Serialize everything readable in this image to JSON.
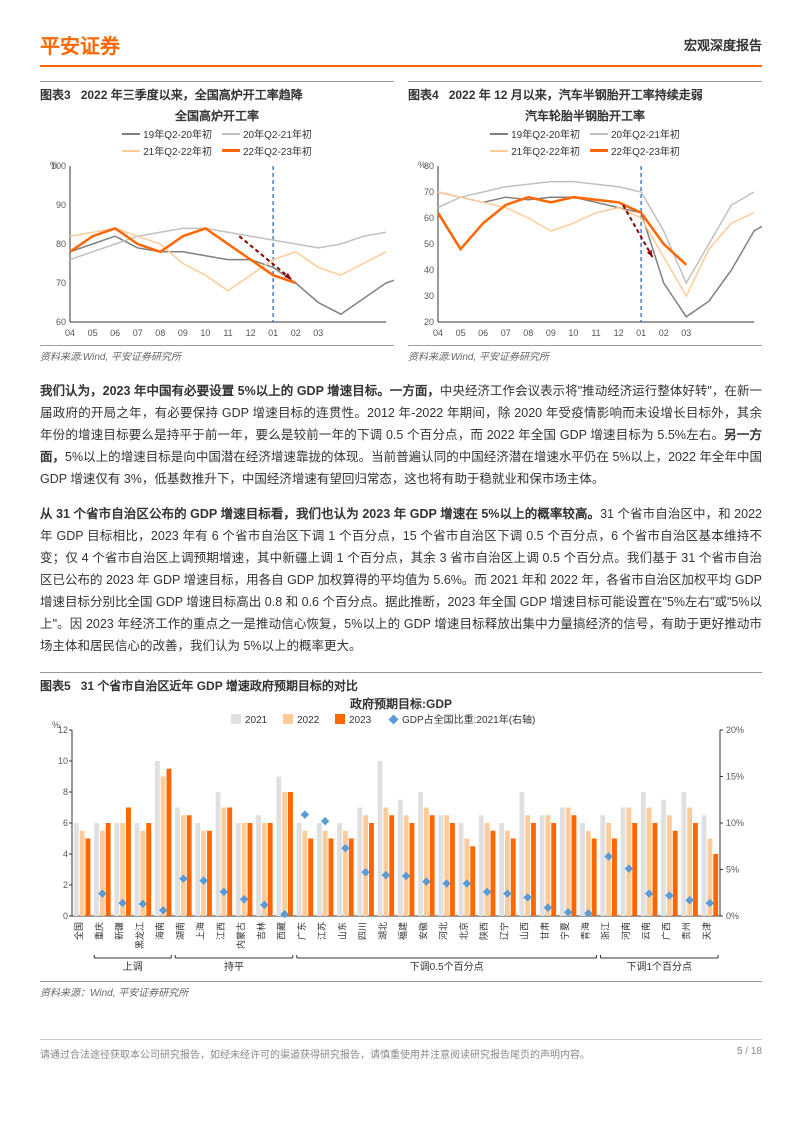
{
  "header": {
    "logo": "平安证券",
    "right": "宏观深度报告"
  },
  "chart3": {
    "type": "line",
    "number": "图表3",
    "title": "2022 年三季度以来，全国高炉开工率趋降",
    "subtitle": "全国高炉开工率",
    "ylabel": "%",
    "ylim": [
      60,
      100
    ],
    "yticks": [
      60,
      70,
      80,
      90,
      100
    ],
    "xticks": [
      "04",
      "05",
      "06",
      "07",
      "08",
      "09",
      "10",
      "11",
      "12",
      "01",
      "02",
      "03"
    ],
    "vline_at": 9,
    "arrow": {
      "from": [
        7.5,
        82
      ],
      "to": [
        9.8,
        71
      ]
    },
    "series": [
      {
        "label": "19年Q2-20年初",
        "color": "#808080",
        "data": [
          78,
          80,
          82,
          79,
          78,
          78,
          77,
          76,
          76,
          74,
          70,
          65,
          62,
          66,
          70,
          72,
          74
        ]
      },
      {
        "label": "20年Q2-21年初",
        "color": "#c0c0c0",
        "data": [
          76,
          78,
          80,
          82,
          83,
          84,
          84,
          83,
          82,
          81,
          80,
          79,
          80,
          82,
          83
        ]
      },
      {
        "label": "21年Q2-22年初",
        "color": "#ffcc99",
        "data": [
          82,
          83,
          84,
          82,
          80,
          75,
          72,
          68,
          72,
          76,
          78,
          74,
          72,
          75,
          78
        ]
      },
      {
        "label": "22年Q2-23年初",
        "color": "#ff6600",
        "data": [
          78,
          82,
          84,
          80,
          78,
          82,
          84,
          80,
          76,
          72,
          70
        ]
      }
    ],
    "source": "资料来源:Wind, 平安证券研究所"
  },
  "chart4": {
    "type": "line",
    "number": "图表4",
    "title": "2022 年 12 月以来，汽车半钢胎开工率持续走弱",
    "subtitle": "汽车轮胎半钢胎开工率",
    "ylabel": "%",
    "ylim": [
      20,
      80
    ],
    "yticks": [
      20,
      30,
      40,
      50,
      60,
      70,
      80
    ],
    "xticks": [
      "04",
      "05",
      "06",
      "07",
      "08",
      "09",
      "10",
      "11",
      "12",
      "01",
      "02",
      "03"
    ],
    "vline_at": 9,
    "arrow": {
      "from": [
        8.2,
        65
      ],
      "to": [
        9.5,
        45
      ]
    },
    "series": [
      {
        "label": "19年Q2-20年初",
        "color": "#808080",
        "data": [
          70,
          68,
          66,
          68,
          67,
          68,
          68,
          66,
          64,
          62,
          35,
          22,
          28,
          40,
          55,
          60
        ]
      },
      {
        "label": "20年Q2-21年初",
        "color": "#c0c0c0",
        "data": [
          64,
          68,
          70,
          72,
          73,
          74,
          74,
          73,
          72,
          70,
          55,
          35,
          50,
          65,
          70
        ]
      },
      {
        "label": "21年Q2-22年初",
        "color": "#ffcc99",
        "data": [
          70,
          68,
          66,
          64,
          60,
          55,
          58,
          62,
          64,
          60,
          45,
          30,
          48,
          58,
          62
        ]
      },
      {
        "label": "22年Q2-23年初",
        "color": "#ff6600",
        "data": [
          62,
          48,
          58,
          65,
          68,
          66,
          68,
          67,
          66,
          62,
          50,
          42
        ]
      }
    ],
    "source": "资料来源:Wind, 平安证券研究所"
  },
  "body": {
    "p1_bold": "我们认为，2023 年中国有必要设置 5%以上的 GDP 增速目标。一方面，",
    "p1_rest": "中央经济工作会议表示将\"推动经济运行整体好转\"，在新一届政府的开局之年，有必要保持 GDP 增速目标的连贯性。2012 年-2022 年期间，除 2020 年受疫情影响而未设增长目标外，其余年份的增速目标要么是持平于前一年，要么是较前一年的下调 0.5 个百分点，而 2022 年全国 GDP 增速目标为 5.5%左右。",
    "p1_bold2": "另一方面，",
    "p1_rest2": "5%以上的增速目标是向中国潜在经济增速靠拢的体现。当前普遍认同的中国经济潜在增速水平仍在 5%以上，2022 年全年中国 GDP 增速仅有 3%，低基数推升下，中国经济增速有望回归常态，这也将有助于稳就业和保市场主体。",
    "p2_bold": "从 31 个省市自治区公布的 GDP 增速目标看，我们也认为 2023 年 GDP 增速在 5%以上的概率较高。",
    "p2_rest": "31 个省市自治区中，和 2022 年 GDP 目标相比，2023 年有 6 个省市自治区下调 1 个百分点，15 个省市自治区下调 0.5 个百分点，6 个省市自治区基本维持不变；仅 4 个省市自治区上调预期增速，其中新疆上调 1 个百分点，其余 3 省市自治区上调 0.5 个百分点。我们基于 31 个省市自治区已公布的 2023 年 GDP 增速目标，用各自 GDP 加权算得的平均值为 5.6%。而 2021 年和 2022 年，各省市自治区加权平均 GDP 增速目标分别比全国 GDP 增速目标高出 0.8 和 0.6 个百分点。据此推断，2023 年全国 GDP 增速目标可能设置在\"5%左右\"或\"5%以上\"。因 2023 年经济工作的重点之一是推动信心恢复，5%以上的 GDP 增速目标释放出集中力量搞经济的信号，有助于更好推动市场主体和居民信心的改善，我们认为 5%以上的概率更大。"
  },
  "chart5": {
    "type": "bar",
    "number": "图表5",
    "title": "31 个省市自治区近年 GDP 增速政府预期目标的对比",
    "subtitle": "政府预期目标:GDP",
    "ylabel_left": "%",
    "ylabel_right": "",
    "ylim_left": [
      0,
      12
    ],
    "yticks_left": [
      0,
      2,
      4,
      6,
      8,
      10,
      12
    ],
    "ylim_right": [
      0,
      20
    ],
    "yticks_right": [
      "0%",
      "5%",
      "10%",
      "15%",
      "20%"
    ],
    "legend": [
      {
        "label": "2021",
        "color": "#e0e0e0",
        "type": "bar"
      },
      {
        "label": "2022",
        "color": "#ffcc99",
        "type": "bar"
      },
      {
        "label": "2023",
        "color": "#ff6600",
        "type": "bar"
      },
      {
        "label": "GDP占全国比重:2021年(右轴)",
        "color": "#5b9bd5",
        "type": "diamond"
      }
    ],
    "groups": [
      {
        "label": "上调",
        "range": [
          1,
          4
        ]
      },
      {
        "label": "持平",
        "range": [
          5,
          10
        ]
      },
      {
        "label": "下调0.5个百分点",
        "range": [
          11,
          25
        ]
      },
      {
        "label": "下调1个百分点",
        "range": [
          26,
          31
        ]
      }
    ],
    "categories": [
      "全国",
      "重庆",
      "新疆",
      "黑龙江",
      "海南",
      "湖南",
      "上海",
      "江西",
      "内蒙古",
      "吉林",
      "西藏",
      "广东",
      "江苏",
      "山东",
      "四川",
      "湖北",
      "福建",
      "安徽",
      "河北",
      "北京",
      "陕西",
      "辽宁",
      "山西",
      "甘肃",
      "宁夏",
      "青海",
      "浙江",
      "河南",
      "云南",
      "广西",
      "贵州",
      "天津"
    ],
    "data_2021": [
      6.0,
      6.0,
      6.0,
      6.0,
      10.0,
      7.0,
      6.0,
      8.0,
      6.0,
      6.5,
      9.0,
      6.0,
      6.0,
      6.0,
      7.0,
      10.0,
      7.5,
      8.0,
      6.5,
      6.0,
      6.5,
      6.0,
      8.0,
      6.5,
      7.0,
      6.0,
      6.5,
      7.0,
      8.0,
      7.5,
      8.0,
      6.5
    ],
    "data_2022": [
      5.5,
      5.5,
      6.0,
      5.5,
      9.0,
      6.5,
      5.5,
      7.0,
      6.0,
      6.0,
      8.0,
      5.5,
      5.5,
      5.5,
      6.5,
      7.0,
      6.5,
      7.0,
      6.5,
      5.0,
      6.0,
      5.5,
      6.5,
      6.5,
      7.0,
      5.5,
      6.0,
      7.0,
      7.0,
      6.5,
      7.0,
      5.0
    ],
    "data_2023": [
      5.0,
      6.0,
      7.0,
      6.0,
      9.5,
      6.5,
      5.5,
      7.0,
      6.0,
      6.0,
      8.0,
      5.0,
      5.0,
      5.0,
      6.0,
      6.5,
      6.0,
      6.5,
      6.0,
      4.5,
      5.5,
      5.0,
      6.0,
      6.0,
      6.5,
      5.0,
      5.0,
      6.0,
      6.0,
      5.5,
      6.0,
      4.0
    ],
    "data_share": [
      null,
      2.4,
      1.4,
      1.3,
      0.6,
      4.0,
      3.8,
      2.6,
      1.8,
      1.2,
      0.2,
      10.9,
      10.2,
      7.3,
      4.7,
      4.4,
      4.3,
      3.7,
      3.5,
      3.5,
      2.6,
      2.4,
      2.0,
      0.9,
      0.4,
      0.3,
      6.4,
      5.1,
      2.4,
      2.2,
      1.7,
      1.4
    ],
    "source": "资料来源：Wind, 平安证券研究所"
  },
  "footer": {
    "left": "请通过合法途径获取本公司研究报告，如经未经许可的渠道获得研究报告，请慎重使用并注意阅读研究报告尾页的声明内容。",
    "right": "5 / 18"
  }
}
